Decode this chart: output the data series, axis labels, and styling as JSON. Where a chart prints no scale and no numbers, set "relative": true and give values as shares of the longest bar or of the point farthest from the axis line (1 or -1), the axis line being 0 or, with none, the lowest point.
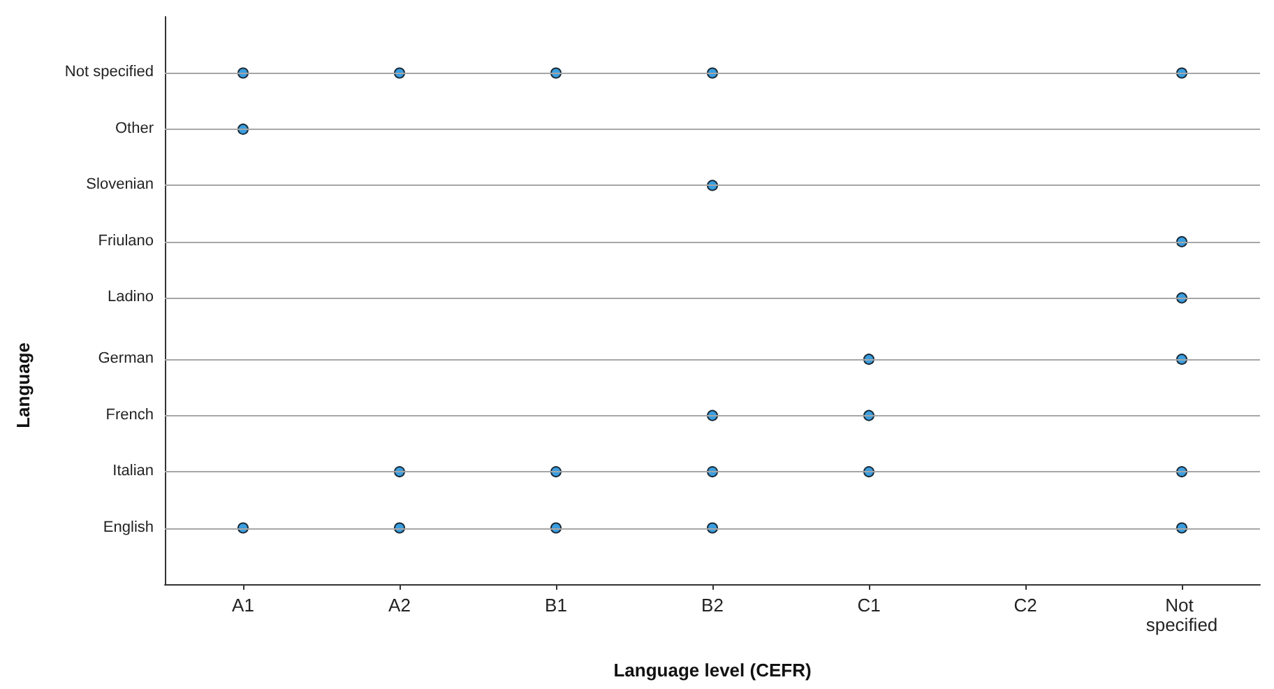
{
  "chart_data": {
    "type": "scatter",
    "xlabel": "Language level (CEFR)",
    "relative": true,
    "categories": [
      "A1",
      "A2",
      "B1",
      "B2",
      "C1",
      "C2",
      "Not specified"
    ],
    "grid": "y",
    "marker": "circle",
    "annotations": [
      "Language",
      "Not specified",
      "Other",
      "Slovenian",
      "Friulano",
      "Ladino",
      "German",
      "French",
      "Italian",
      "English"
    ],
    "series": [
      {
        "color": "#3a9ee0",
        "x": [
          "A1",
          "A2",
          "B1",
          "B2",
          "Not specified",
          "A1",
          "B2",
          "Not specified",
          "Not specified",
          "C1",
          "Not specified",
          "B2",
          "C1",
          "A2",
          "B1",
          "B2",
          "C1",
          "Not specified",
          "A1",
          "A2",
          "B1",
          "B2",
          "Not specified"
        ],
        "values": [
          1,
          1,
          1,
          1,
          1,
          0.89,
          0.78,
          0.67,
          0.56,
          0.44,
          0.44,
          0.33,
          0.33,
          0.22,
          0.22,
          0.22,
          0.22,
          0.22,
          0.11,
          0.11,
          0.11,
          0.11,
          0.11
        ]
      }
    ]
  }
}
